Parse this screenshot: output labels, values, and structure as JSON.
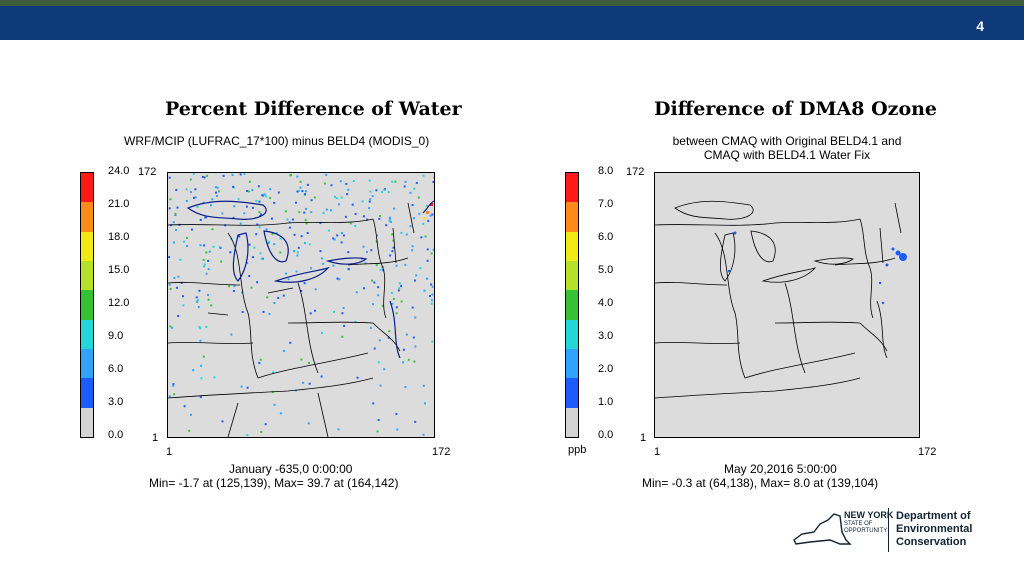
{
  "header": {
    "page_number": "4"
  },
  "left_panel": {
    "title": "Percent Difference of Water",
    "subtitle": "WRF/MCIP (LUFRAC_17*100) minus BELD4 (MODIS_0)",
    "colorbar_labels": [
      "0.0",
      "3.0",
      "6.0",
      "9.0",
      "12.0",
      "15.0",
      "18.0",
      "21.0",
      "24.0"
    ],
    "colorbar_colors": [
      "#d4d4d4",
      "#1e5bff",
      "#2fa3ff",
      "#25d6d6",
      "#35c235",
      "#b6e12b",
      "#f0ea17",
      "#ff8a1a",
      "#ff1a1a"
    ],
    "axis": {
      "y_top": "172",
      "y_bottom": "1",
      "x_left": "1",
      "x_right": "172"
    },
    "footer_time": "January -635,0 0:00:00",
    "footer_minmax": "Min=    -1.7 at (125,139), Max=    39.7 at (164,142)"
  },
  "right_panel": {
    "title": "Difference of DMA8 Ozone",
    "subtitle_line1": "between CMAQ with Original BELD4.1 and",
    "subtitle_line2": "CMAQ with BELD4.1 Water Fix",
    "colorbar_labels": [
      "0.0",
      "1.0",
      "2.0",
      "3.0",
      "4.0",
      "5.0",
      "6.0",
      "7.0",
      "8.0"
    ],
    "colorbar_colors": [
      "#d4d4d4",
      "#1e5bff",
      "#2fa3ff",
      "#25d6d6",
      "#35c235",
      "#b6e12b",
      "#f0ea17",
      "#ff8a1a",
      "#ff1a1a"
    ],
    "unit": "ppb",
    "axis": {
      "y_top": "172",
      "y_bottom": "1",
      "x_left": "1",
      "x_right": "172"
    },
    "footer_time": "May 20,2016 5:00:00",
    "footer_minmax": "Min=    -0.3 at (64,138), Max=    8.0 at (139,104)"
  },
  "logo": {
    "ny_line1": "NEW YORK",
    "ny_line2": "STATE OF",
    "ny_line3": "OPPORTUNITY",
    "dec_line1": "Department of",
    "dec_line2": "Environmental",
    "dec_line3": "Conservation"
  }
}
